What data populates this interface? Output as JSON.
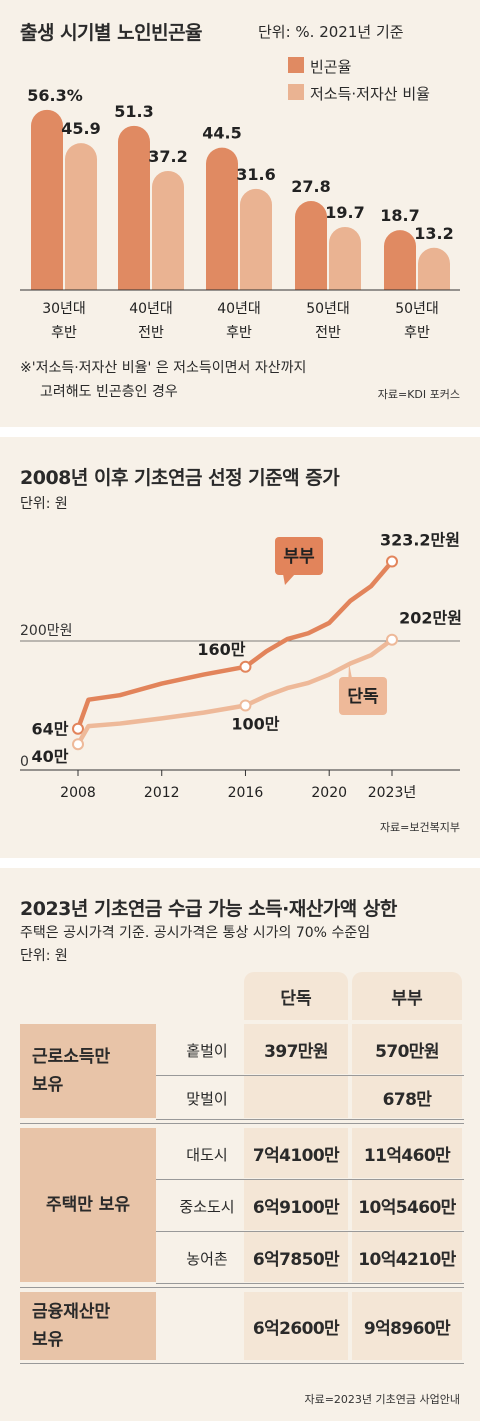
{
  "colors": {
    "bg": "#f7f1e8",
    "poverty": "#e08a62",
    "lowincome": "#eab392",
    "couple_line": "#e2845b",
    "single_line": "#eeb999",
    "table_head": "#e8c4a8",
    "table_sub": "#f4e6d6",
    "divider": "#ffffff"
  },
  "chart1": {
    "title": "출생 시기별 노인빈곤율",
    "unit": "단위: %. 2021년 기준",
    "note": [
      "※'저소득·저자산 비율' 은 저소득이면서 자산까지",
      "고려해도 빈곤층인 경우"
    ],
    "source": "자료=KDI 포커스"
  },
  "chart2": {
    "title": "2008년 이후 기초연금 선정 기준액 증가",
    "unit": "단위: 원",
    "ref_label": "200만원",
    "zero_label": "0",
    "couple_bubble": "부부",
    "single_bubble": "단독",
    "source": "자료=보건복지부"
  },
  "chart3": {
    "title": "2023년 기초연금 수급 가능 소득·재산가액 상한",
    "subtitle": "주택은 공시가격 기준. 공시가격은 통상 시가의 70% 수준임",
    "unit": "단위: 원",
    "col_single": "단독",
    "col_couple": "부부",
    "rows": [
      {
        "group": "근로소득만 보유",
        "sub": "홑벌이",
        "single": "397만원",
        "couple": "570만원"
      },
      {
        "group": "",
        "sub": "맞벌이",
        "single": "",
        "couple": "678만"
      },
      {
        "group": "주택만 보유",
        "sub": "대도시",
        "single": "7억4100만",
        "couple": "11억460만"
      },
      {
        "group": "",
        "sub": "중소도시",
        "single": "6억9100만",
        "couple": "10억5460만"
      },
      {
        "group": "",
        "sub": "농어촌",
        "single": "6억7850만",
        "couple": "10억4210만"
      },
      {
        "group": "금융재산만 보유",
        "sub": "",
        "single": "6억2600만",
        "couple": "9억8960만"
      }
    ],
    "source": "자료=2023년 기초연금 사업안내"
  },
  "chart_data": [
    {
      "type": "bar",
      "title": "출생 시기별 노인빈곤율",
      "categories": [
        "30년대 후반",
        "40년대 전반",
        "40년대 후반",
        "50년대 전반",
        "50년대 후반"
      ],
      "series": [
        {
          "name": "빈곤율",
          "values": [
            56.3,
            51.3,
            44.5,
            27.8,
            18.7
          ],
          "labels": [
            "56.3%",
            "51.3",
            "44.5",
            "27.8",
            "18.7"
          ]
        },
        {
          "name": "저소득·저자산 비율",
          "values": [
            45.9,
            37.2,
            31.6,
            19.7,
            13.2
          ],
          "labels": [
            "45.9",
            "37.2",
            "31.6",
            "19.7",
            "13.2"
          ]
        }
      ],
      "ylim": [
        0,
        60
      ],
      "legend": "top-right"
    },
    {
      "type": "line",
      "title": "2008년 이후 기초연금 선정 기준액 증가",
      "x_ticks": [
        {
          "value": 2008,
          "label": "2008"
        },
        {
          "value": 2012,
          "label": "2012"
        },
        {
          "value": 2016,
          "label": "2016"
        },
        {
          "value": 2020,
          "label": "2020"
        },
        {
          "value": 2023,
          "label": "2023년"
        }
      ],
      "xlim": [
        2008,
        2023
      ],
      "ylim": [
        0,
        340
      ],
      "reference_line": 200,
      "series": [
        {
          "name": "부부",
          "x": [
            2008,
            2008.5,
            2010,
            2012,
            2014,
            2016,
            2017,
            2018,
            2019,
            2020,
            2021,
            2022,
            2023
          ],
          "values": [
            64,
            109,
            116,
            134,
            148,
            160,
            184,
            203,
            212,
            228,
            262,
            285,
            323.2
          ],
          "point_labels": [
            {
              "x": 2008,
              "label": "64만"
            },
            {
              "x": 2016,
              "label": "160만"
            },
            {
              "x": 2023,
              "label": "323.2만원"
            }
          ]
        },
        {
          "name": "단독",
          "x": [
            2008,
            2008.5,
            2010,
            2012,
            2014,
            2016,
            2017,
            2018,
            2019,
            2020,
            2021,
            2022,
            2023
          ],
          "values": [
            40,
            68,
            72,
            80,
            89,
            100,
            115,
            127,
            135,
            148,
            165,
            178,
            202
          ],
          "point_labels": [
            {
              "x": 2008,
              "label": "40만"
            },
            {
              "x": 2016,
              "label": "100만"
            },
            {
              "x": 2023,
              "label": "202만원"
            }
          ]
        }
      ]
    },
    {
      "type": "table",
      "title": "2023년 기초연금 수급 가능 소득·재산가액 상한",
      "columns": [
        "",
        "",
        "단독",
        "부부"
      ],
      "rows": [
        [
          "근로소득만 보유",
          "홑벌이",
          "397만원",
          "570만원"
        ],
        [
          "근로소득만 보유",
          "맞벌이",
          "",
          "678만"
        ],
        [
          "주택만 보유",
          "대도시",
          "7억4100만",
          "11억460만"
        ],
        [
          "주택만 보유",
          "중소도시",
          "6억9100만",
          "10억5460만"
        ],
        [
          "주택만 보유",
          "농어촌",
          "6억7850만",
          "10억4210만"
        ],
        [
          "금융재산만 보유",
          "",
          "6억2600만",
          "9억8960만"
        ]
      ]
    }
  ]
}
